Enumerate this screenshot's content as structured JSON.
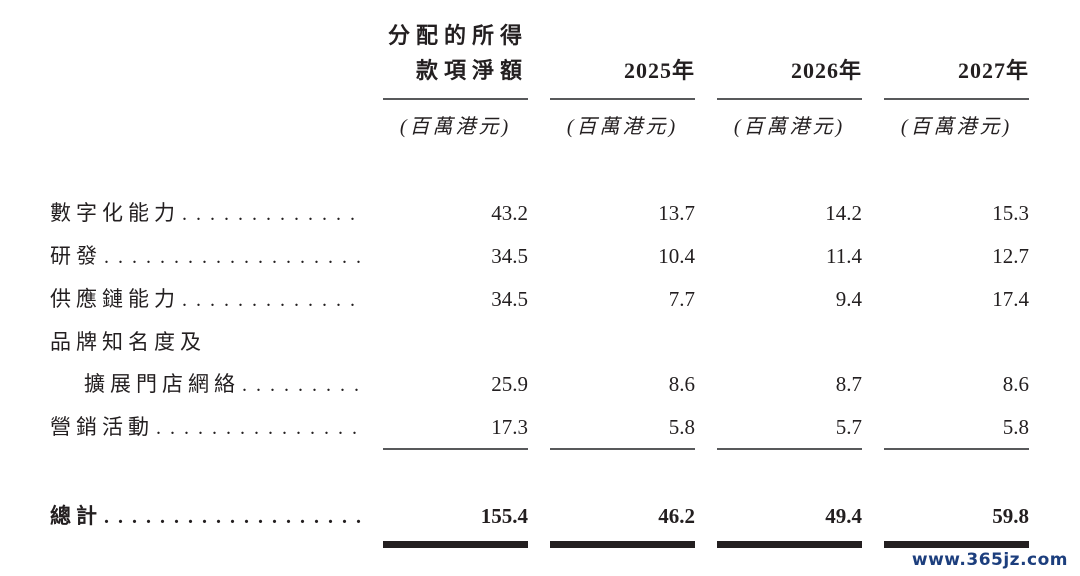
{
  "table": {
    "header": {
      "col1_line1": "分配的所得",
      "col1_line2": "款項淨額",
      "years": [
        "2025年",
        "2026年",
        "2027年"
      ],
      "unit": "(百萬港元)"
    },
    "rows": [
      {
        "label": "數字化能力",
        "values": [
          "43.2",
          "13.7",
          "14.2",
          "15.3"
        ]
      },
      {
        "label": "研發",
        "values": [
          "34.5",
          "10.4",
          "11.4",
          "12.7"
        ]
      },
      {
        "label": "供應鏈能力",
        "values": [
          "34.5",
          "7.7",
          "9.4",
          "17.4"
        ]
      },
      {
        "label_line1": "品牌知名度及",
        "label_line2": "擴展門店網絡",
        "values": [
          "25.9",
          "8.6",
          "8.7",
          "8.6"
        ]
      },
      {
        "label": "營銷活動",
        "values": [
          "17.3",
          "5.8",
          "5.7",
          "5.8"
        ]
      }
    ],
    "total": {
      "label": "總計",
      "values": [
        "155.4",
        "46.2",
        "49.4",
        "59.8"
      ]
    }
  },
  "page": {
    "watermark": "www.365jz.com",
    "watermark_color": "#1c3e7d",
    "text_color": "#231f20",
    "rule_color": "#58595b"
  }
}
